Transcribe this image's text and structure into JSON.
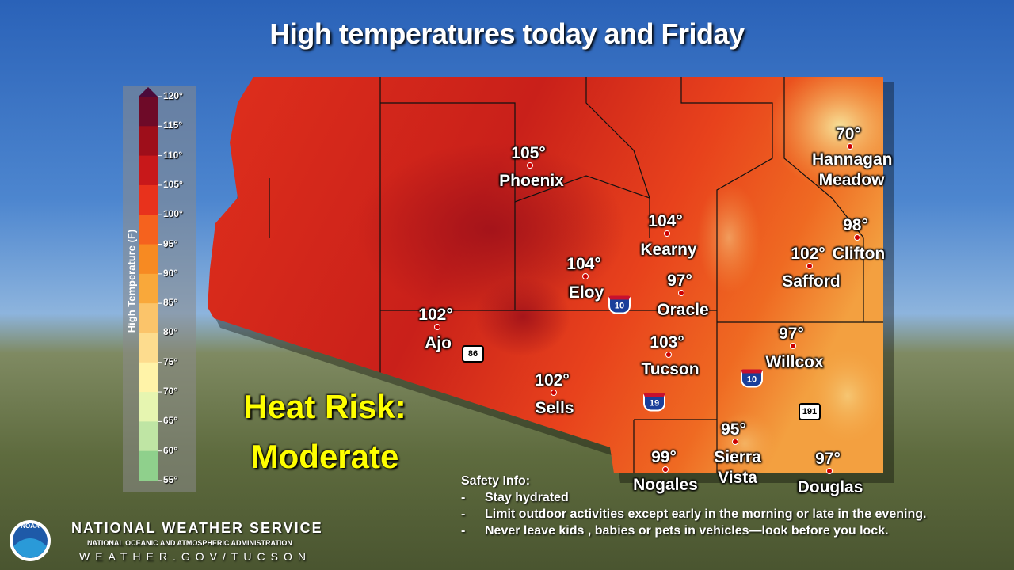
{
  "title": "High temperatures today and Friday",
  "legend": {
    "title": "High Temperature (F)",
    "ticks": [
      "120°",
      "115°",
      "110°",
      "105°",
      "100°",
      "95°",
      "90°",
      "85°",
      "80°",
      "75°",
      "70°",
      "65°",
      "60°",
      "55°"
    ]
  },
  "cities": [
    {
      "temp": "105°",
      "name": "Phoenix"
    },
    {
      "temp": "70°",
      "name": "Hannagan Meadow"
    },
    {
      "temp": "98°",
      "name": "Clifton"
    },
    {
      "temp": "104°",
      "name": "Kearny"
    },
    {
      "temp": "102°",
      "name": "Safford"
    },
    {
      "temp": "104°",
      "name": "Eloy"
    },
    {
      "temp": "97°",
      "name": "Oracle"
    },
    {
      "temp": "102°",
      "name": "Ajo"
    },
    {
      "temp": "103°",
      "name": "Tucson"
    },
    {
      "temp": "97°",
      "name": "Willcox"
    },
    {
      "temp": "102°",
      "name": "Sells"
    },
    {
      "temp": "95°",
      "name": "Sierra Vista"
    },
    {
      "temp": "99°",
      "name": "Nogales"
    },
    {
      "temp": "97°",
      "name": "Douglas"
    }
  ],
  "highways": [
    "10",
    "86",
    "10",
    "19",
    "191"
  ],
  "heat_risk": [
    "Heat Risk:",
    "Moderate"
  ],
  "safety": {
    "heading": "Safety Info:",
    "items": [
      "Stay hydrated",
      "Limit outdoor activities except early in the morning or late in the evening.",
      "Never leave kids , babies or pets in vehicles—look before you lock."
    ]
  },
  "footer": {
    "logo": "NOAA",
    "agency": "NATIONAL WEATHER SERVICE",
    "parent": "NATIONAL OCEANIC AND ATMOSPHERIC ADMINISTRATION",
    "url": "WEATHER.GOV/TUCSON"
  }
}
